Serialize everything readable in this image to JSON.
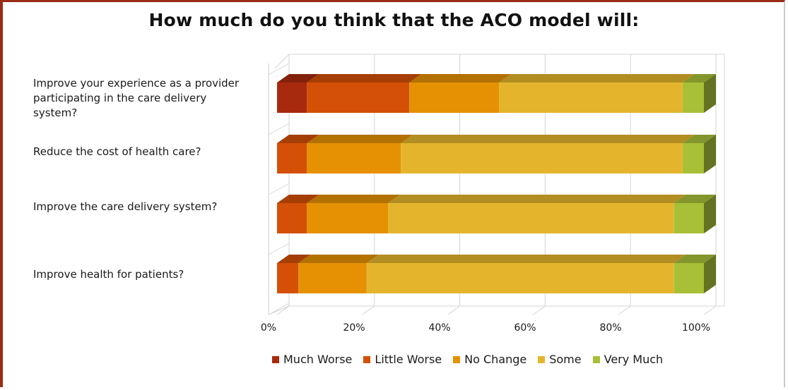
{
  "chart_data": {
    "type": "bar",
    "orientation": "horizontal",
    "stacked": "100%",
    "title": "How much do you think that the ACO model will:",
    "categories": [
      "Improve your experience as a provider participating in the care delivery system?",
      "Reduce the cost of health care?",
      "Improve the care delivery system?",
      "Improve health for patients?"
    ],
    "series": [
      {
        "name": "Much Worse",
        "color": "#a82a0e",
        "values": [
          7,
          0,
          0,
          0
        ]
      },
      {
        "name": "Little Worse",
        "color": "#d45006",
        "values": [
          24,
          7,
          7,
          5
        ]
      },
      {
        "name": "No Change",
        "color": "#e59103",
        "values": [
          21,
          22,
          19,
          16
        ]
      },
      {
        "name": "Some",
        "color": "#e4b52c",
        "values": [
          43,
          66,
          67,
          72
        ]
      },
      {
        "name": "Very Much",
        "color": "#a7c037",
        "values": [
          5,
          5,
          7,
          7
        ]
      }
    ],
    "x_ticks": [
      "0%",
      "20%",
      "40%",
      "60%",
      "80%",
      "100%"
    ],
    "xlim": [
      0,
      100
    ],
    "grid": true,
    "legend_position": "bottom"
  }
}
